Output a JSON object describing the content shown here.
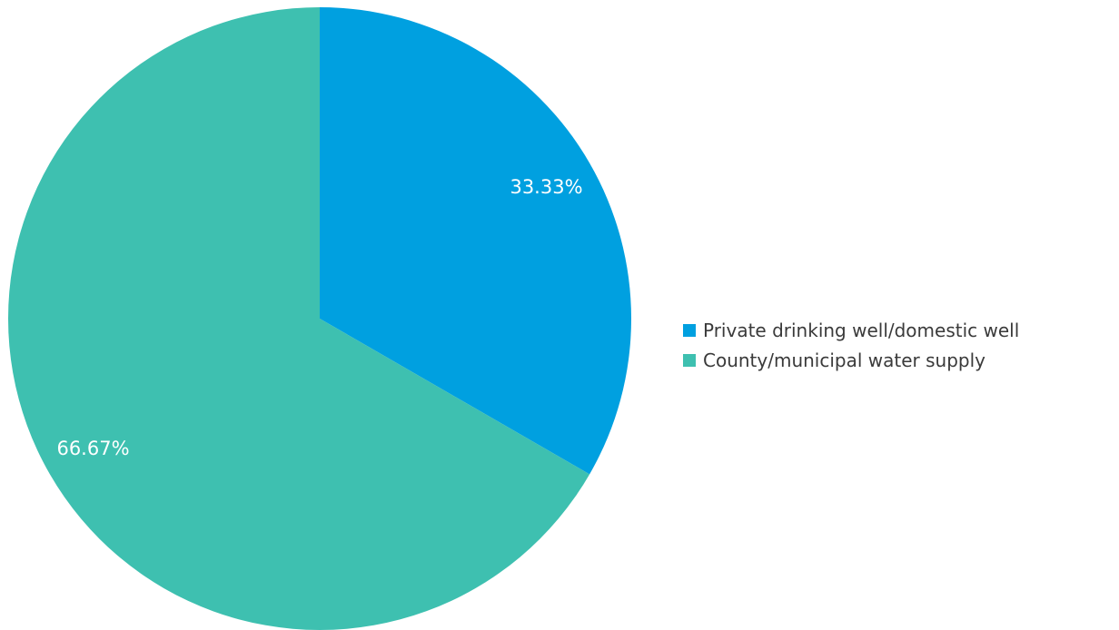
{
  "chart_data": {
    "type": "pie",
    "title": "",
    "slices": [
      {
        "label": "Private drinking well/domestic well",
        "value": 33.33,
        "display": "33.33%",
        "color": "#00a0e0"
      },
      {
        "label": "County/municipal water supply",
        "value": 66.67,
        "display": "66.67%",
        "color": "#3ec0b0"
      }
    ],
    "legend_position": "right",
    "start_angle": "12 o'clock, clockwise"
  },
  "legend": {
    "items": [
      {
        "label": "Private drinking well/domestic well",
        "color": "#00a0e0"
      },
      {
        "label": "County/municipal water supply",
        "color": "#3ec0b0"
      }
    ]
  },
  "slice_labels": [
    "33.33%",
    "66.67%"
  ]
}
